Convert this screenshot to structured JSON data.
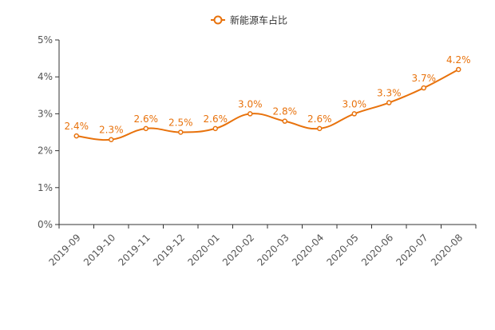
{
  "chart_data": {
    "type": "line",
    "title": "",
    "xlabel": "",
    "ylabel": "",
    "categories": [
      "2019-09",
      "2019-10",
      "2019-11",
      "2019-12",
      "2020-01",
      "2020-02",
      "2020-03",
      "2020-04",
      "2020-05",
      "2020-06",
      "2020-07",
      "2020-08"
    ],
    "series": [
      {
        "name": "新能源车占比",
        "values": [
          2.4,
          2.3,
          2.6,
          2.5,
          2.6,
          3.0,
          2.8,
          2.6,
          3.0,
          3.3,
          3.7,
          4.2
        ],
        "labels": [
          "2.4%",
          "2.3%",
          "2.6%",
          "2.5%",
          "2.6%",
          "3.0%",
          "2.8%",
          "2.6%",
          "3.0%",
          "3.3%",
          "3.7%",
          "4.2%"
        ],
        "color": "#e8720c",
        "smooth": true
      }
    ],
    "ylim": [
      0,
      5
    ],
    "yticks": [
      0,
      1,
      2,
      3,
      4,
      5
    ],
    "ytick_labels": [
      "0%",
      "1%",
      "2%",
      "3%",
      "4%",
      "5%"
    ],
    "legend_position": "top-center",
    "grid": false
  }
}
